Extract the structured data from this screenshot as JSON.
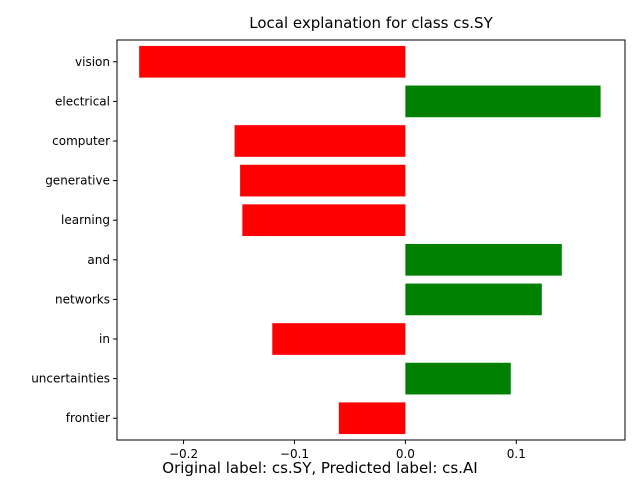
{
  "chart_data": {
    "type": "bar",
    "orientation": "horizontal",
    "title": "Local explanation for class cs.SY",
    "categories": [
      "vision",
      "electrical",
      "computer",
      "generative",
      "learning",
      "and",
      "networks",
      "in",
      "uncertainties",
      "frontier"
    ],
    "values": [
      -0.24,
      0.176,
      -0.154,
      -0.149,
      -0.147,
      0.141,
      0.123,
      -0.12,
      0.095,
      -0.06
    ],
    "colors": {
      "positive": "#008000",
      "negative": "#ff0000"
    },
    "xlim": [
      -0.26,
      0.198
    ],
    "xticks": [
      -0.2,
      -0.1,
      0.0,
      0.1
    ],
    "xtick_labels": [
      "−0.2",
      "−0.1",
      "0.0",
      "0.1"
    ],
    "grid": false
  },
  "caption": "Original label: cs.SY, Predicted label: cs.AI"
}
